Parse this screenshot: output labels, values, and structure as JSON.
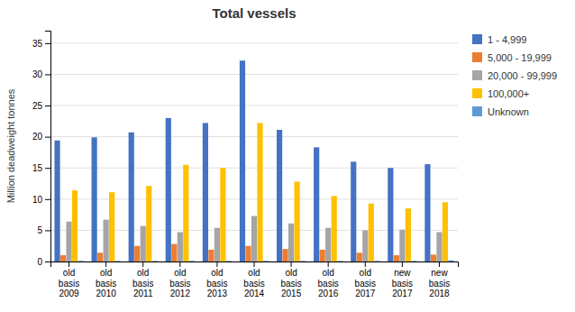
{
  "chart_data": {
    "type": "bar",
    "title": "Total vessels",
    "ylabel": "Million deadweight tonnes",
    "categories": [
      [
        "old",
        "basis",
        "2009"
      ],
      [
        "old",
        "basis",
        "2010"
      ],
      [
        "old",
        "basis",
        "2011"
      ],
      [
        "old",
        "basis",
        "2012"
      ],
      [
        "old",
        "basis",
        "2013"
      ],
      [
        "old",
        "basis",
        "2014"
      ],
      [
        "old",
        "basis",
        "2015"
      ],
      [
        "old",
        "basis",
        "2016"
      ],
      [
        "old",
        "basis",
        "2017"
      ],
      [
        "new",
        "basis",
        "2017"
      ],
      [
        "new",
        "basis",
        "2018"
      ]
    ],
    "series": [
      {
        "name": "1 - 4,999",
        "color": "#4472C4",
        "values": [
          19.4,
          19.9,
          20.7,
          23.0,
          22.2,
          32.2,
          21.1,
          18.3,
          16.0,
          15.0,
          15.6
        ]
      },
      {
        "name": "5,000 - 19,999",
        "color": "#ED7D31",
        "values": [
          1.0,
          1.4,
          2.5,
          2.8,
          1.9,
          2.5,
          2.0,
          1.9,
          1.4,
          1.0,
          1.1
        ]
      },
      {
        "name": "20,000 - 99,999",
        "color": "#A5A5A5",
        "values": [
          6.4,
          6.7,
          5.7,
          4.7,
          5.4,
          7.3,
          6.1,
          5.4,
          5.0,
          5.1,
          4.7
        ]
      },
      {
        "name": "100,000+",
        "color": "#FFC000",
        "values": [
          11.4,
          11.1,
          12.1,
          15.5,
          15.0,
          22.2,
          12.8,
          10.5,
          9.3,
          8.5,
          9.5
        ]
      },
      {
        "name": "Unknown",
        "color": "#5B9BD5",
        "values": [
          0.1,
          0.1,
          0.1,
          0.1,
          0.1,
          0.1,
          0.1,
          0.1,
          0.1,
          0.1,
          0.2
        ]
      }
    ],
    "ylim": [
      0,
      37
    ],
    "yticks": [
      0,
      5,
      10,
      15,
      20,
      25,
      30,
      35
    ],
    "grid": true,
    "legend": "right"
  }
}
